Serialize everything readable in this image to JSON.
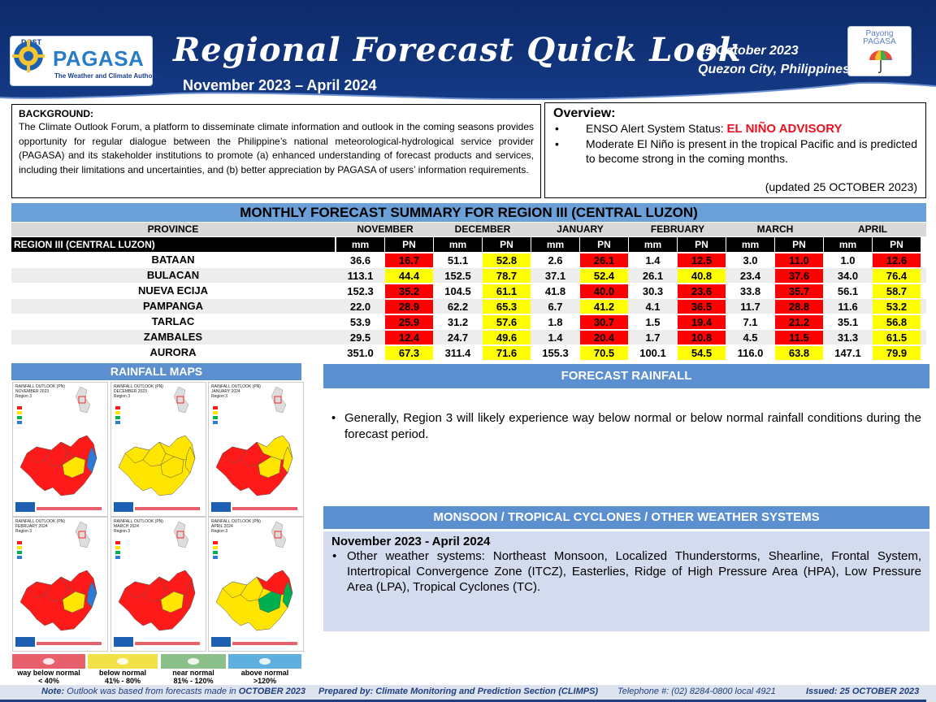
{
  "header": {
    "logo_org": "DOST",
    "logo_name": "PAGASA",
    "logo_tagline": "The Weather and Climate Authority",
    "title": "Regional Forecast Quick Look",
    "period": "November 2023 – April 2024",
    "date": "25 October 2023",
    "place": "Quezon City, Philippines",
    "payong_line1": "Payong",
    "payong_line2": "PAGASA"
  },
  "background": {
    "title": "BACKGROUND:",
    "text": "The Climate Outlook Forum, a platform to disseminate climate information and outlook in the coming seasons provides opportunity for regular dialogue between the Philippine’s national meteorological-hydrological service provider (PAGASA) and its stakeholder institutions to promote (a) enhanced understanding of forecast products and services, including their limitations and uncertainties, and (b) better appreciation by PAGASA of users’ information requirements."
  },
  "overview": {
    "title": "Overview:",
    "enso_label": "ENSO Alert System Status: ",
    "enso_status": "EL NIÑO ADVISORY",
    "item2": "Moderate El Niño is present in the tropical Pacific and is predicted to become strong in the coming months.",
    "updated": "(updated 25 OCTOBER 2023)"
  },
  "table": {
    "title": "MONTHLY FORECAST SUMMARY FOR REGION III (CENTRAL LUZON)",
    "province_header": "PROVINCE",
    "region_label": "REGION III (CENTRAL LUZON)",
    "months": [
      "NOVEMBER",
      "DECEMBER",
      "JANUARY",
      "FEBRUARY",
      "MARCH",
      "APRIL"
    ],
    "mm_label": "mm",
    "pn_label": "PN",
    "colors": {
      "red": "#ff0000",
      "yellow": "#ffff00",
      "green": "#00b050"
    },
    "rows": [
      {
        "province": "BATAAN",
        "values": [
          [
            "36.6",
            "16.7",
            "red"
          ],
          [
            "51.1",
            "52.8",
            "yellow"
          ],
          [
            "2.6",
            "26.1",
            "red"
          ],
          [
            "1.4",
            "12.5",
            "red"
          ],
          [
            "3.0",
            "11.0",
            "red"
          ],
          [
            "1.0",
            "12.6",
            "red"
          ]
        ]
      },
      {
        "province": "BULACAN",
        "values": [
          [
            "113.1",
            "44.4",
            "yellow"
          ],
          [
            "152.5",
            "78.7",
            "yellow"
          ],
          [
            "37.1",
            "52.4",
            "yellow"
          ],
          [
            "26.1",
            "40.8",
            "yellow"
          ],
          [
            "23.4",
            "37.6",
            "red"
          ],
          [
            "34.0",
            "76.4",
            "yellow"
          ]
        ]
      },
      {
        "province": "NUEVA ECIJA",
        "values": [
          [
            "152.3",
            "35.2",
            "red"
          ],
          [
            "104.5",
            "61.1",
            "yellow"
          ],
          [
            "41.8",
            "40.0",
            "red"
          ],
          [
            "30.3",
            "23.6",
            "red"
          ],
          [
            "33.8",
            "35.7",
            "red"
          ],
          [
            "56.1",
            "58.7",
            "yellow"
          ]
        ]
      },
      {
        "province": "PAMPANGA",
        "values": [
          [
            "22.0",
            "28.9",
            "red"
          ],
          [
            "62.2",
            "65.3",
            "yellow"
          ],
          [
            "6.7",
            "41.2",
            "yellow"
          ],
          [
            "4.1",
            "36.5",
            "red"
          ],
          [
            "11.7",
            "28.8",
            "red"
          ],
          [
            "11.6",
            "53.2",
            "yellow"
          ]
        ]
      },
      {
        "province": "TARLAC",
        "values": [
          [
            "53.9",
            "25.9",
            "red"
          ],
          [
            "31.2",
            "57.6",
            "yellow"
          ],
          [
            "1.8",
            "30.7",
            "red"
          ],
          [
            "1.5",
            "19.4",
            "red"
          ],
          [
            "7.1",
            "21.2",
            "red"
          ],
          [
            "35.1",
            "56.8",
            "yellow"
          ]
        ]
      },
      {
        "province": "ZAMBALES",
        "values": [
          [
            "29.5",
            "12.4",
            "red"
          ],
          [
            "24.7",
            "49.6",
            "yellow"
          ],
          [
            "1.4",
            "20.4",
            "red"
          ],
          [
            "1.7",
            "10.8",
            "red"
          ],
          [
            "4.5",
            "11.5",
            "red"
          ],
          [
            "31.3",
            "61.5",
            "yellow"
          ]
        ]
      },
      {
        "province": "AURORA",
        "values": [
          [
            "351.0",
            "67.3",
            "yellow"
          ],
          [
            "311.4",
            "71.6",
            "yellow"
          ],
          [
            "155.3",
            "70.5",
            "yellow"
          ],
          [
            "100.1",
            "54.5",
            "yellow"
          ],
          [
            "116.0",
            "63.8",
            "yellow"
          ],
          [
            "147.1",
            "79.9",
            "yellow"
          ]
        ]
      }
    ]
  },
  "rainfall_maps": {
    "title": "RAINFALL MAPS",
    "panels": [
      {
        "title": "RAINFALL OUTLOOK (PN)",
        "month": "NOVEMBER 2023",
        "region": "Region 3",
        "fill": "red"
      },
      {
        "title": "RAINFALL OUTLOOK (PN)",
        "month": "DECEMBER 2023",
        "region": "Region 3",
        "fill": "yellow"
      },
      {
        "title": "RAINFALL OUTLOOK (PN)",
        "month": "JANUARY 2024",
        "region": "Region 3",
        "fill": "mixed"
      },
      {
        "title": "RAINFALL OUTLOOK (PN)",
        "month": "FEBRUARY 2024",
        "region": "Region 3",
        "fill": "red"
      },
      {
        "title": "RAINFALL OUTLOOK (PN)",
        "month": "MARCH 2024",
        "region": "Region 3",
        "fill": "red"
      },
      {
        "title": "RAINFALL OUTLOOK (PN)",
        "month": "APRIL 2024",
        "region": "Region 3",
        "fill": "yellow"
      }
    ],
    "legend": [
      {
        "label": "way below normal",
        "range": "< 40%",
        "color": "#e8606b"
      },
      {
        "label": "below normal",
        "range": "41% - 80%",
        "color": "#f2e24a"
      },
      {
        "label": "near normal",
        "range": "81% - 120%",
        "color": "#8bc08a"
      },
      {
        "label": "above normal",
        "range": ">120%",
        "color": "#5fb0df"
      }
    ]
  },
  "forecast_rainfall": {
    "title": "FORECAST RAINFALL",
    "text": "Generally, Region 3 will likely experience way below normal or below normal rainfall conditions during the forecast period."
  },
  "monsoon": {
    "title": "MONSOON  / TROPICAL CYCLONES / OTHER WEATHER SYSTEMS",
    "period": "November 2023 - April 2024",
    "text": "Other weather systems: Northeast Monsoon, Localized Thunderstorms, Shearline, Frontal System, Intertropical Convergence Zone (ITCZ), Easterlies, Ridge of High Pressure Area (HPA), Low Pressure Area (LPA), Tropical Cyclones (TC)."
  },
  "footer": {
    "note_label": "Note:",
    "note_text": " Outlook was based from forecasts made in ",
    "note_month": "OCTOBER 2023",
    "prepared": "Prepared by: Climate Monitoring and Prediction Section (CLIMPS)",
    "telephone": "Telephone #: (02) 8284-0800 local 4921",
    "issued": "Issued: 25 OCTOBER 2023"
  }
}
